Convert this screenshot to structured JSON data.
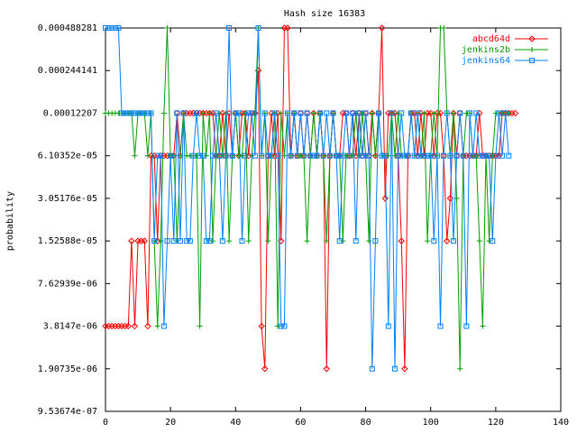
{
  "chart_data": {
    "type": "line",
    "title": "Hash size 16383",
    "xlabel": "",
    "ylabel": "probability",
    "y_scale": "log2",
    "xlim": [
      0,
      140
    ],
    "ylim_exp": [
      -20,
      -11
    ],
    "x_ticks": [
      0,
      20,
      40,
      60,
      80,
      100,
      120,
      140
    ],
    "y_tick_exps": [
      -20,
      -19,
      -18,
      -17,
      -16,
      -15,
      -14,
      -13,
      -12,
      -11
    ],
    "y_tick_labels": [
      "9.53674e-07",
      "1.90735e-06",
      "3.8147e-06",
      "7.62939e-06",
      "1.52588e-05",
      "3.05176e-05",
      "6.10352e-05",
      "0.00012207",
      "0.000244141",
      "0.000488281"
    ],
    "legend_position": "top-right",
    "grid": false,
    "series": [
      {
        "name": "abcd64d",
        "color": "#ff0000",
        "marker": "diamond",
        "values_log2": [
          -18,
          -18,
          -18,
          -18,
          -18,
          -18,
          -18,
          -18,
          -16,
          -18,
          -16,
          -16,
          -16,
          -18,
          -14,
          -14,
          -16,
          -14,
          -14,
          -14,
          -14,
          -14,
          -13,
          -14,
          -13,
          -13,
          -13,
          -13,
          -13,
          -13,
          -13,
          -13,
          -13,
          -13,
          -14,
          -14,
          -13,
          -14,
          -13,
          -14,
          -13,
          -14,
          -13,
          -13,
          -14,
          -13,
          -13,
          -12,
          -18,
          -19,
          -14,
          -13,
          -14,
          -13,
          -16,
          -11,
          -11,
          -14,
          -13,
          -14,
          -13,
          -14,
          -13,
          -14,
          -13,
          -14,
          -13,
          -14,
          -19,
          -14,
          -13,
          -14,
          -14,
          -13,
          -13,
          -14,
          -13,
          -14,
          -13,
          -14,
          -13,
          -14,
          -13,
          -14,
          -13,
          -11,
          -15,
          -13,
          -13,
          -13,
          -14,
          -16,
          -19,
          -14,
          -13,
          -13,
          -14,
          -13,
          -14,
          -13,
          -13,
          -14,
          -13,
          -13,
          -14,
          -16,
          -15,
          -13,
          -14,
          -13,
          -14,
          -14,
          -14,
          -14,
          -14,
          -13,
          -14,
          -14,
          -14,
          -14,
          -14,
          -14,
          -13,
          -13,
          -13,
          -13,
          -13
        ],
        "values_real": []
      },
      {
        "name": "jenkins2b",
        "color": "#00a000",
        "marker": "plus",
        "values_log2": [
          -13,
          -13,
          -13,
          -13,
          -13,
          -13,
          -13,
          -13,
          -13,
          -14,
          -13,
          -13,
          -13,
          -14,
          -13,
          -16,
          -18,
          -16,
          -13,
          -11,
          -14,
          -14,
          -16,
          -14,
          -13,
          -14,
          -14,
          -14,
          -14,
          -18,
          -13,
          -14,
          -13,
          -16,
          -14,
          -13,
          -14,
          -13,
          -16,
          -14,
          -13,
          -14,
          -14,
          -13,
          -16,
          -14,
          -13,
          -11,
          -14,
          -13,
          -16,
          -14,
          -13,
          -18,
          -13,
          -14,
          -13,
          -14,
          -13,
          -14,
          -14,
          -14,
          -16,
          -14,
          -13,
          -14,
          -13,
          -14,
          -16,
          -14,
          -13,
          -14,
          -14,
          -16,
          -14,
          -14,
          -14,
          -13,
          -14,
          -13,
          -14,
          -16,
          -13,
          -14,
          -13,
          -14,
          -14,
          -14,
          -13,
          -14,
          -13,
          -14,
          -14,
          -14,
          -13,
          -14,
          -13,
          -14,
          -13,
          -16,
          -14,
          -13,
          -14,
          -11,
          -11,
          -13,
          -14,
          -13,
          -15,
          -19,
          -14,
          -13,
          -13,
          -14,
          -14,
          -16,
          -18,
          -14,
          -16,
          -14,
          -13,
          -13,
          -13,
          -13,
          -13
        ],
        "values_real": []
      },
      {
        "name": "jenkins64",
        "color": "#0080ff",
        "marker": "square",
        "values_log2": [
          -11,
          -11,
          -11,
          -11,
          -11,
          -13,
          -13,
          -13,
          -13,
          -13,
          -13,
          -13,
          -13,
          -13,
          -13,
          -16,
          -14,
          -14,
          -18,
          -16,
          -14,
          -16,
          -13,
          -16,
          -13,
          -16,
          -16,
          -14,
          -13,
          -14,
          -14,
          -16,
          -16,
          -14,
          -13,
          -14,
          -16,
          -14,
          -11,
          -14,
          -13,
          -13,
          -16,
          -14,
          -13,
          -13,
          -14,
          -11,
          -14,
          -13,
          -14,
          -14,
          -13,
          -14,
          -18,
          -18,
          -13,
          -14,
          -13,
          -14,
          -13,
          -14,
          -13,
          -14,
          -14,
          -14,
          -13,
          -14,
          -13,
          -14,
          -13,
          -14,
          -16,
          -14,
          -13,
          -14,
          -13,
          -16,
          -13,
          -14,
          -13,
          -14,
          -19,
          -16,
          -13,
          -14,
          -14,
          -18,
          -13,
          -19,
          -14,
          -13,
          -14,
          -14,
          -13,
          -14,
          -13,
          -14,
          -14,
          -14,
          -14,
          -16,
          -14,
          -18,
          -14,
          -13,
          -14,
          -16,
          -14,
          -13,
          -14,
          -18,
          -13,
          -14,
          -13,
          -14,
          -14,
          -14,
          -14,
          -16,
          -14,
          -13,
          -14,
          -13,
          -14
        ],
        "values_real": []
      }
    ]
  }
}
